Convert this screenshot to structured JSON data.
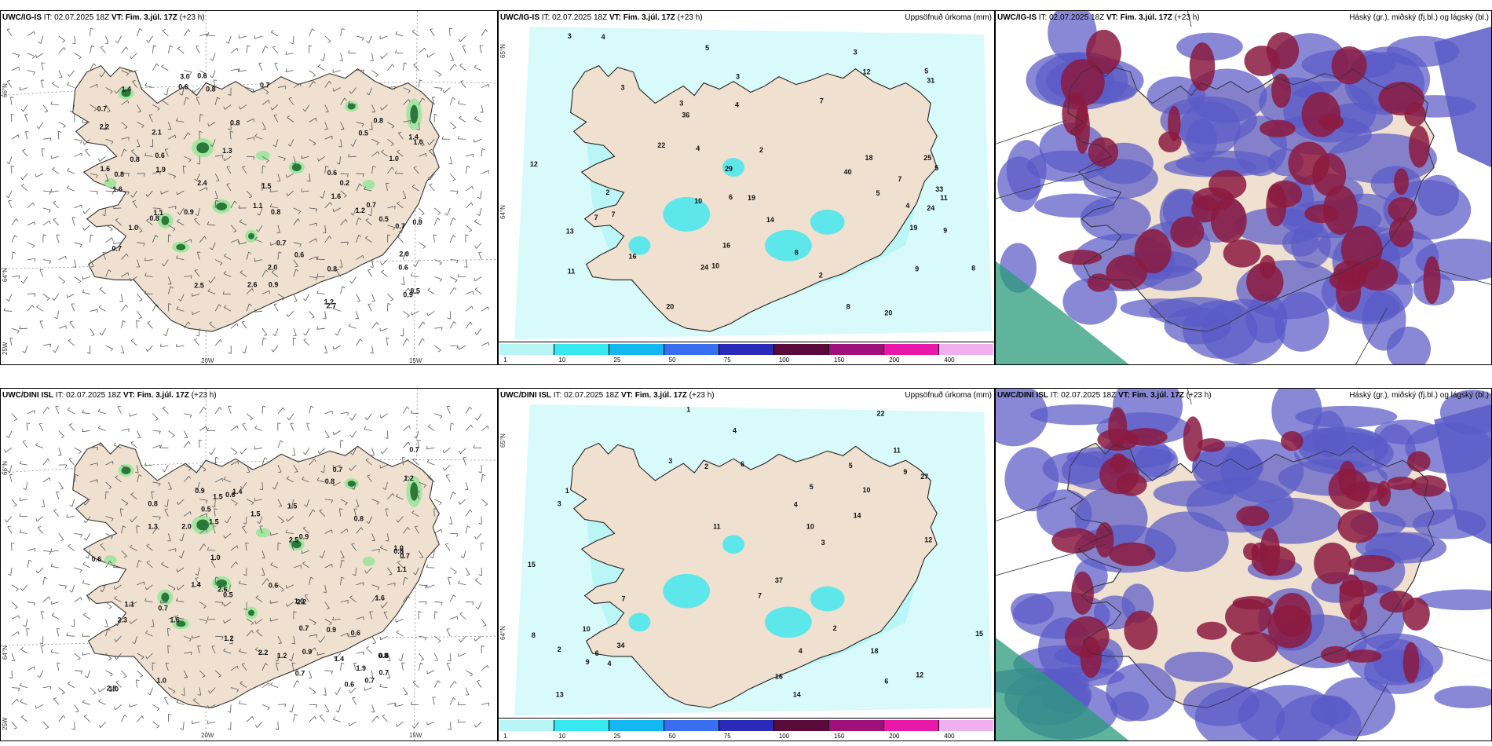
{
  "colors": {
    "land": "#efe0cf",
    "sea": "#ffffff",
    "precip_light": "#b8f6f6",
    "cloud_high": "#8b1a3f",
    "cloud_mid": "#5a5ac8",
    "cloud_low": "#7aa3e8",
    "green_precip": "#1f6b2f"
  },
  "panels": [
    {
      "id": "p1",
      "model": "UWC/IG-IS",
      "it_label": "IT:",
      "it_value": "02.07.2025 18Z",
      "vt_label": "VT:",
      "vt_value": "Fim. 3.júl. 17Z",
      "lead": "(+23 h)",
      "right_title": "",
      "kind": "wind"
    },
    {
      "id": "p2",
      "model": "UWC/IG-IS",
      "it_label": "IT:",
      "it_value": "02.07.2025 18Z",
      "vt_label": "VT:",
      "vt_value": "Fim. 3.júl. 17Z",
      "lead": "(+23 h)",
      "right_title": "Uppsöfnuð úrkoma (mm)",
      "kind": "precip"
    },
    {
      "id": "p3",
      "model": "UWC/IG-IS",
      "it_label": "IT:",
      "it_value": "02.07.2025 18Z",
      "vt_label": "VT:",
      "vt_value": "Fim. 3.júl. 17Z",
      "lead": "(+23 h)",
      "right_title": "Háský (gr.), miðský (fj.bl.) og lágský (bl.)",
      "kind": "cloud"
    },
    {
      "id": "p4",
      "model": "UWC/DINI ISL",
      "it_label": "IT:",
      "it_value": "02.07.2025 18Z",
      "vt_label": "VT:",
      "vt_value": "Fim. 3.júl. 17Z",
      "lead": "(+23 h)",
      "right_title": "",
      "kind": "wind"
    },
    {
      "id": "p5",
      "model": "UWC/DINI ISL",
      "it_label": "IT:",
      "it_value": "02.07.2025 18Z",
      "vt_label": "VT:",
      "vt_value": "Fim. 3.júl. 17Z",
      "lead": "(+23 h)",
      "right_title": "Uppsöfnuð úrkoma (mm)",
      "kind": "precip"
    },
    {
      "id": "p6",
      "model": "UWC/DINI ISL",
      "it_label": "IT:",
      "it_value": "02.07.2025 18Z",
      "vt_label": "VT:",
      "vt_value": "Fim. 3.júl. 17Z",
      "lead": "(+23 h)",
      "right_title": "Háský (gr.), miðský (fj.bl.) og lágský (bl.)",
      "kind": "cloud"
    }
  ],
  "grid_labels": {
    "lat_66": "66°N",
    "lat_64": "64°N",
    "lon_20": "20W",
    "lon_15": "15W",
    "lon_25": "25W"
  },
  "colorbar": {
    "colors": [
      "#b8f6f6",
      "#38e8f0",
      "#14b8f0",
      "#3a6ef0",
      "#2a2ab8",
      "#5a0a3a",
      "#a0107a",
      "#e818a8",
      "#f0b0f0"
    ],
    "ticks": [
      "1",
      "10",
      "25",
      "50",
      "75",
      "100",
      "150",
      "200",
      "400"
    ]
  },
  "wind_values_top": [
    "2.0",
    "0.5",
    "0.8",
    "1.0",
    "0.8",
    "1.2",
    "1.0",
    "1.1",
    "0.8",
    "2.6",
    "0.7",
    "0.6",
    "0.2",
    "2.7",
    "2.0",
    "0.8",
    "1.0",
    "0.8",
    "0.9",
    "0.8",
    "1.1",
    "1.5",
    "0.7",
    "0.9",
    "0.6",
    "0.9",
    "1.6",
    "2.5",
    "0.7",
    "0.8",
    "1.9",
    "2.2",
    "1.4",
    "2.1",
    "1.6",
    "0.8",
    "0.6",
    "0.5",
    "1.2",
    "0.5",
    "0.7",
    "0.9",
    "1.4",
    "1.3",
    "0.6",
    "0.7",
    "3.0",
    "2.4",
    "0.6",
    "0.7",
    "1.6",
    "0.6"
  ],
  "wind_values_bottom": [
    "1.2",
    "0.6",
    "1.0",
    "1.6",
    "1.0",
    "0.8",
    "1.6",
    "1.5",
    "0.8",
    "1.2",
    "0.5",
    "0.6",
    "0.9",
    "0.9",
    "1.5",
    "2.2",
    "1.9",
    "1.0",
    "0.9",
    "0.8",
    "1.4",
    "2.3",
    "1.1",
    "1.3",
    "1.4",
    "1.1",
    "2.0",
    "0.7",
    "1.2",
    "1.5",
    "2.6",
    "2.2",
    "0.8",
    "1.0",
    "0.7",
    "0.7",
    "0.6",
    "0.7",
    "0.7",
    "2.5",
    "0.7",
    "0.9",
    "1.4",
    "0.8",
    "1.0",
    "1.5",
    "0.7",
    "0.5",
    "0.7",
    "2.8",
    "0.6",
    "0.8",
    "0.6"
  ],
  "precip_values_top": [
    "2",
    "5",
    "10",
    "8",
    "4",
    "9",
    "3",
    "2",
    "3",
    "3",
    "7",
    "6",
    "16",
    "11",
    "16",
    "40",
    "24",
    "20",
    "19",
    "20",
    "29",
    "7",
    "12",
    "14",
    "13",
    "19",
    "24",
    "31",
    "33",
    "36",
    "25",
    "22",
    "18",
    "10",
    "12",
    "11",
    "4",
    "5",
    "4",
    "3",
    "5",
    "5",
    "2",
    "4",
    "3",
    "8",
    "7",
    "9",
    "8",
    "7"
  ],
  "precip_values_bottom": [
    "2",
    "3",
    "6",
    "5",
    "4",
    "4",
    "7",
    "15",
    "12",
    "11",
    "14",
    "16",
    "18",
    "10",
    "37",
    "27",
    "22",
    "34",
    "13",
    "15",
    "12",
    "14",
    "11",
    "9",
    "10",
    "6",
    "4",
    "3",
    "1",
    "2",
    "4",
    "6",
    "8",
    "3",
    "1",
    "5",
    "9",
    "10",
    "7",
    "2"
  ]
}
